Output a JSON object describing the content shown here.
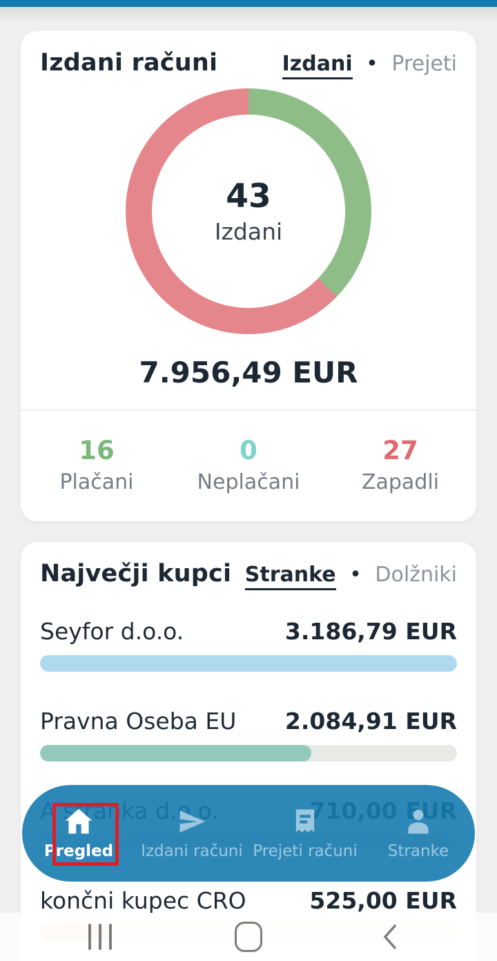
{
  "cards": {
    "invoices": {
      "title": "Izdani računi",
      "toggle": {
        "active": "Izdani",
        "separator": "•",
        "inactive": "Prejeti"
      },
      "donut": {
        "count": "43",
        "label": "Izdani",
        "paid_color": "#8ebd88",
        "overdue_color": "#e5868c",
        "paid_deg": 134
      },
      "total_amount": "7.956,49 EUR",
      "stats": [
        {
          "value": "16",
          "label": "Plačani",
          "color": "#7cb87c"
        },
        {
          "value": "0",
          "label": "Neplačani",
          "color": "#7fd3ca"
        },
        {
          "value": "27",
          "label": "Zapadli",
          "color": "#df6b70"
        }
      ]
    },
    "customers": {
      "title": "Največji kupci",
      "toggle": {
        "active": "Stranke",
        "separator": "•",
        "inactive": "Dolžniki"
      },
      "rows": [
        {
          "name": "Seyfor d.o.o.",
          "amount": "3.186,79 EUR",
          "fill_pct": 100,
          "fill_color": "#aed9ee",
          "track_color": "#e9e9e7"
        },
        {
          "name": "Pravna Oseba EU",
          "amount": "2.084,91 EUR",
          "fill_pct": 65,
          "fill_color": "#93c9bc",
          "track_color": "#e9e9e7"
        },
        {
          "name": "A stranka d.o.o.",
          "amount": "710,00 EUR",
          "fill_pct": 22,
          "fill_color": "#cfe3ee",
          "track_color": "#e9e9e7"
        },
        {
          "name": "končni kupec CRO",
          "amount": "525,00 EUR",
          "fill_pct": 17,
          "fill_color": "#fbe6d0",
          "track_color": "#f7f5f2"
        }
      ]
    }
  },
  "nav": {
    "background": "#177bb0",
    "highlight_color": "#e11d24",
    "items": [
      {
        "label": "Pregled",
        "icon": "home-icon",
        "active": true
      },
      {
        "label": "Izdani računi",
        "icon": "send-icon",
        "active": false
      },
      {
        "label": "Prejeti računi",
        "icon": "receipt-icon",
        "active": false
      },
      {
        "label": "Stranke",
        "icon": "person-icon",
        "active": false
      }
    ]
  },
  "chart_data": {
    "type": "pie",
    "title": "Izdani računi",
    "center_count": 43,
    "center_label": "Izdani",
    "total": "7.956,49 EUR",
    "slices": [
      {
        "label": "Plačani",
        "value": 16,
        "color": "#8ebd88"
      },
      {
        "label": "Zapadli",
        "value": 27,
        "color": "#e5868c"
      }
    ],
    "legend": [
      {
        "label": "Plačani",
        "value": 16
      },
      {
        "label": "Neplačani",
        "value": 0
      },
      {
        "label": "Zapadli",
        "value": 27
      }
    ]
  }
}
